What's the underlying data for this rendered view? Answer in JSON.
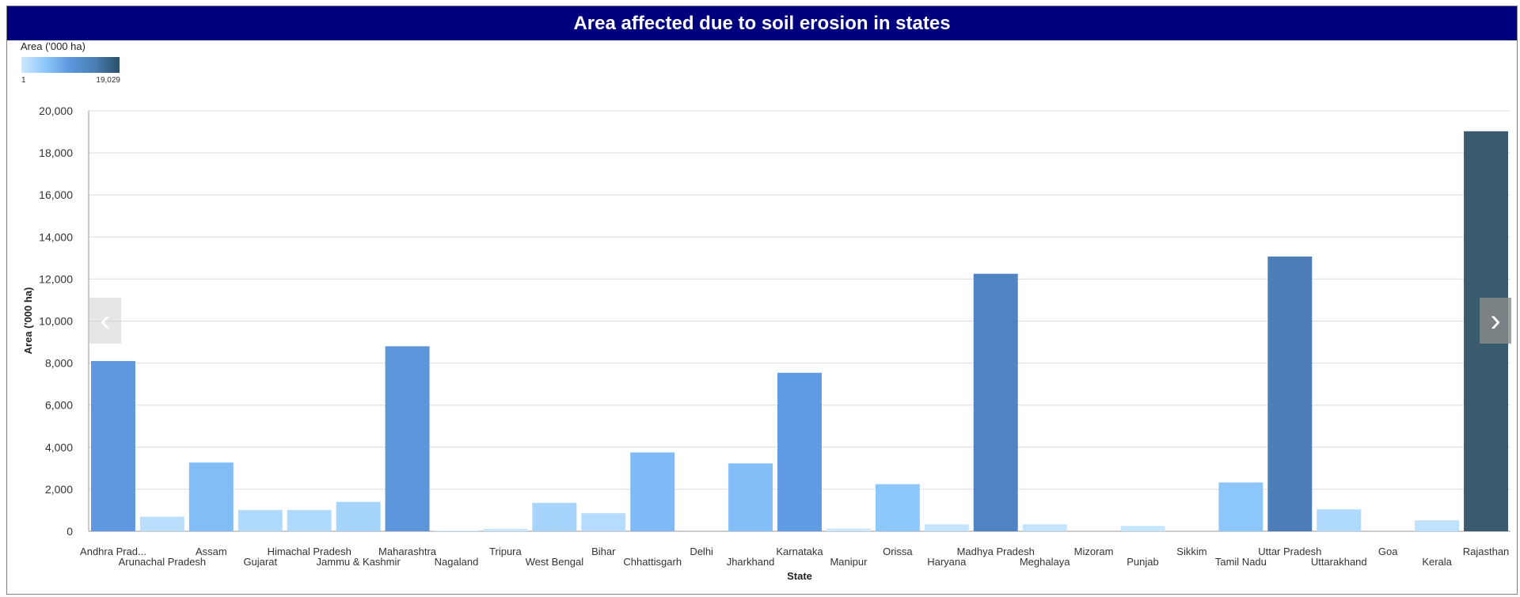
{
  "chart_data": {
    "type": "bar",
    "title": "Area affected due to soil erosion in states",
    "xlabel": "State",
    "ylabel": "Area ('000 ha)",
    "ylim": [
      0,
      20000
    ],
    "yticks": [
      "0",
      "2,000",
      "4,000",
      "6,000",
      "8,000",
      "10,000",
      "12,000",
      "14,000",
      "16,000",
      "18,000",
      "20,000"
    ],
    "grid": true,
    "categories": [
      "Andhra Prad...",
      "Arunachal Pradesh",
      "Assam",
      "Gujarat",
      "Himachal Pradesh",
      "Jammu & Kashmir",
      "Maharashtra",
      "Nagaland",
      "Tripura",
      "West Bengal",
      "Bihar",
      "Chhattisgarh",
      "Delhi",
      "Jharkhand",
      "Karnataka",
      "Manipur",
      "Orissa",
      "Haryana",
      "Madhya Pradesh",
      "Meghalaya",
      "Mizoram",
      "Punjab",
      "Sikkim",
      "Tamil Nadu",
      "Uttar Pradesh",
      "Uttarakhand",
      "Goa",
      "Kerala",
      "Rajasthan"
    ],
    "values": [
      8100,
      690,
      3270,
      1010,
      1010,
      1400,
      8800,
      30,
      120,
      1350,
      860,
      3750,
      1,
      3230,
      7540,
      130,
      2240,
      330,
      12250,
      330,
      1,
      250,
      1,
      2320,
      13070,
      1040,
      1,
      520,
      19029
    ],
    "legend": {
      "title": "Area ('000 ha)",
      "min_label": "1",
      "max_label": "19,029",
      "placement": "top-left"
    }
  },
  "nav": {
    "prev_icon": "chevron-left-icon",
    "next_icon": "chevron-right-icon",
    "prev_glyph": "‹",
    "next_glyph": "›"
  }
}
